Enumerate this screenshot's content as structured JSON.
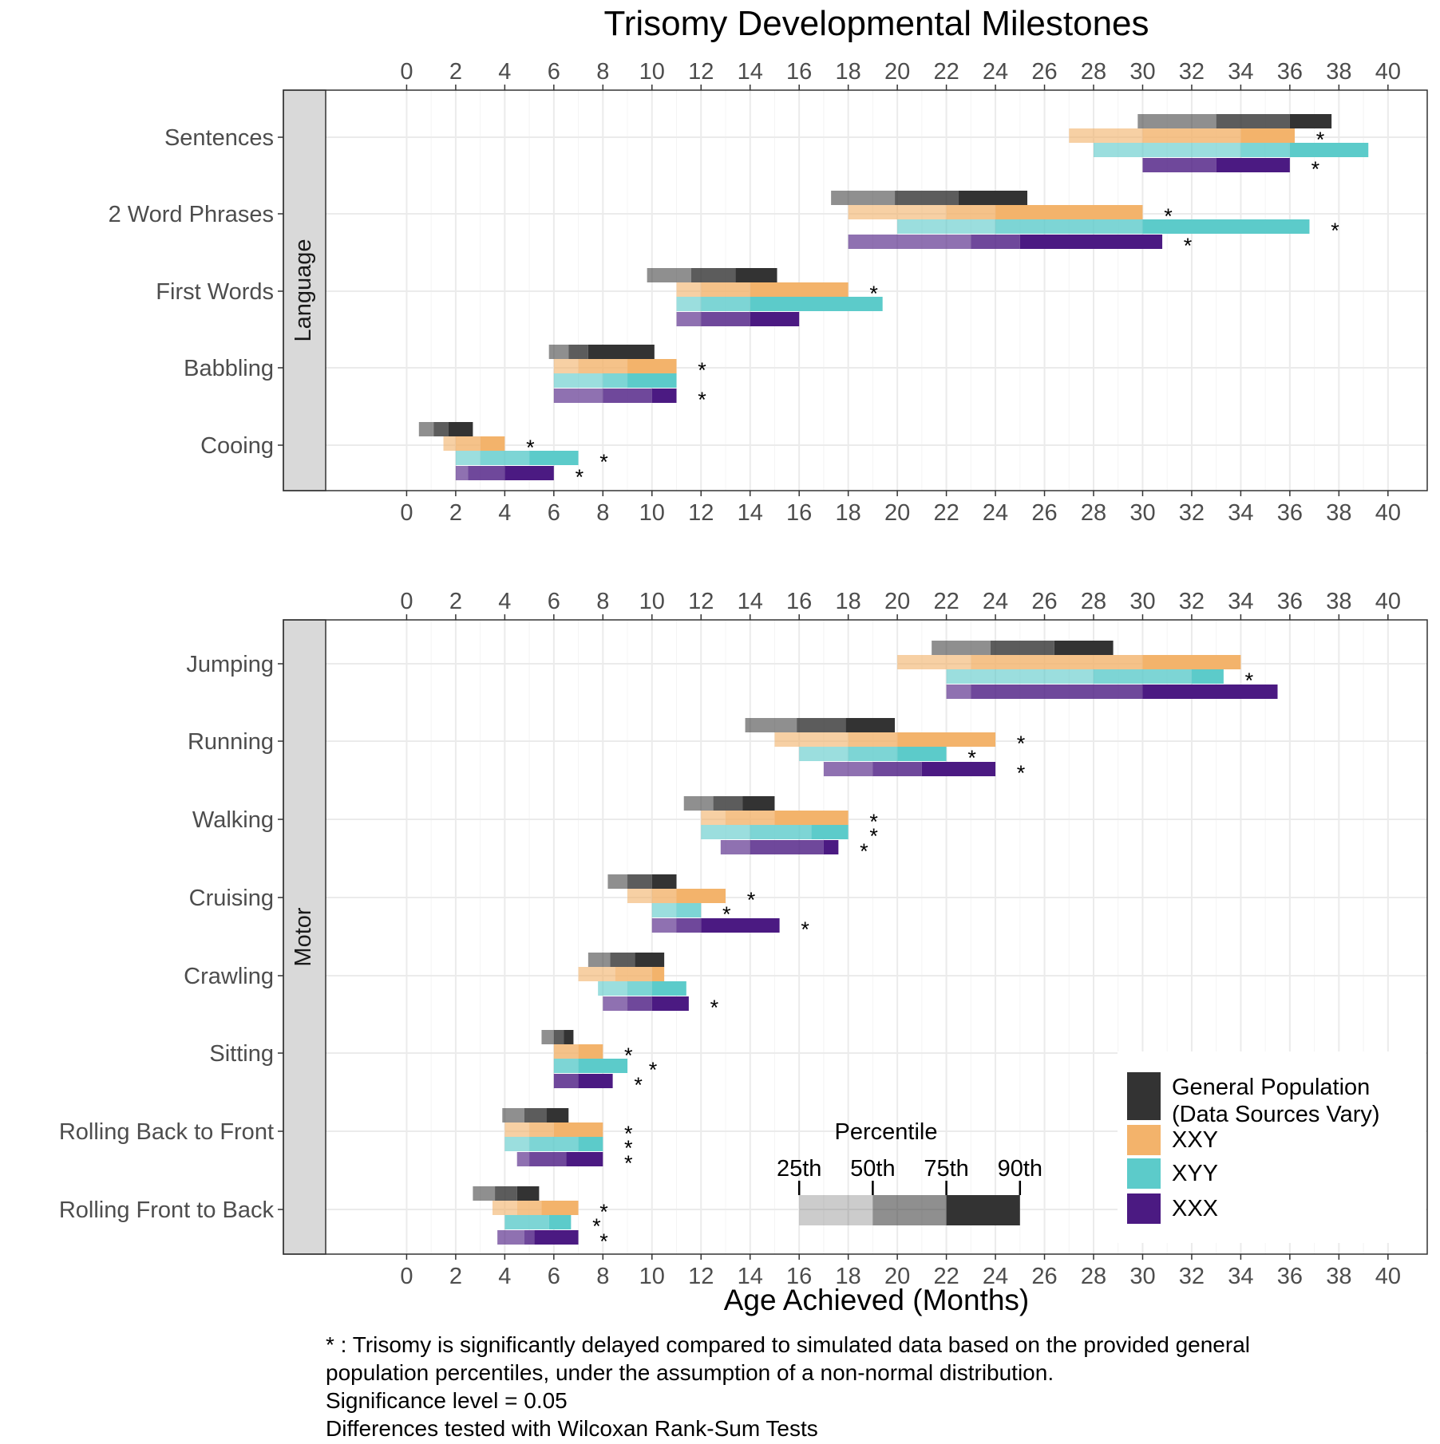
{
  "chart_data": {
    "type": "bar",
    "title": "Trisomy Developmental Milestones",
    "xlabel": "Age Achieved (Months)",
    "xlim": [
      -3.3,
      41.6
    ],
    "x_ticks": [
      0,
      2,
      4,
      6,
      8,
      10,
      12,
      14,
      16,
      18,
      20,
      22,
      24,
      26,
      28,
      30,
      32,
      34,
      36,
      38,
      40
    ],
    "groups": [
      "General Population",
      "XXY",
      "XYY",
      "XXX"
    ],
    "colors": {
      "General Population": "#333333",
      "XXY": "#f3b36b",
      "XYY": "#5ccbca",
      "XXX": "#4b1a82"
    },
    "value_format": "[25th, 50th, 75th, 90th] percentile age in months; asterisk = significant delay",
    "panels": [
      {
        "strip": "Language",
        "milestones": [
          {
            "label": "Sentences",
            "General Population": [
              29.8,
              33.0,
              36.0,
              37.7
            ],
            "XXY": [
              27.0,
              30.0,
              34.0,
              36.2
            ],
            "XXY_sig": true,
            "XYY": [
              28.0,
              34.0,
              36.0,
              39.2
            ],
            "XYY_sig": false,
            "XXX": [
              30.0,
              30.0,
              33.0,
              36.0
            ],
            "XXX_sig": true
          },
          {
            "label": "2 Word Phrases",
            "General Population": [
              17.3,
              19.9,
              22.5,
              25.3
            ],
            "XXY": [
              18.0,
              22.0,
              24.0,
              30.0
            ],
            "XXY_sig": true,
            "XYY": [
              20.0,
              24.0,
              30.0,
              36.8
            ],
            "XYY_sig": true,
            "XXX": [
              18.0,
              23.0,
              25.0,
              30.8
            ],
            "XXX_sig": true
          },
          {
            "label": "First Words",
            "General Population": [
              9.8,
              11.6,
              13.4,
              15.1
            ],
            "XXY": [
              11.0,
              12.0,
              14.0,
              18.0
            ],
            "XXY_sig": true,
            "XYY": [
              11.0,
              12.0,
              14.0,
              19.4
            ],
            "XYY_sig": false,
            "XXX": [
              11.0,
              12.0,
              14.0,
              16.0
            ],
            "XXX_sig": false
          },
          {
            "label": "Babbling",
            "General Population": [
              5.8,
              6.6,
              7.4,
              10.1
            ],
            "XXY": [
              6.0,
              7.0,
              9.0,
              11.0
            ],
            "XXY_sig": true,
            "XYY": [
              6.0,
              8.0,
              9.0,
              11.0
            ],
            "XYY_sig": false,
            "XXX": [
              6.0,
              8.0,
              10.0,
              11.0
            ],
            "XXX_sig": true
          },
          {
            "label": "Cooing",
            "General Population": [
              0.5,
              1.1,
              1.7,
              2.7
            ],
            "XXY": [
              1.5,
              2.0,
              3.0,
              4.0
            ],
            "XXY_sig": true,
            "XYY": [
              2.0,
              3.0,
              5.0,
              7.0
            ],
            "XYY_sig": true,
            "XXX": [
              2.0,
              2.5,
              4.0,
              6.0
            ],
            "XXX_sig": true
          }
        ]
      },
      {
        "strip": "Motor",
        "milestones": [
          {
            "label": "Jumping",
            "General Population": [
              21.4,
              23.8,
              26.4,
              28.8
            ],
            "XXY": [
              20.0,
              23.0,
              30.0,
              34.0
            ],
            "XXY_sig": false,
            "XYY": [
              22.0,
              28.0,
              32.0,
              33.3
            ],
            "XYY_sig": true,
            "XXX": [
              22.0,
              23.0,
              30.0,
              35.5
            ],
            "XXX_sig": false
          },
          {
            "label": "Running",
            "General Population": [
              13.8,
              15.9,
              17.9,
              19.9
            ],
            "XXY": [
              15.0,
              18.0,
              20.0,
              24.0
            ],
            "XXY_sig": true,
            "XYY": [
              16.0,
              18.0,
              20.0,
              22.0
            ],
            "XYY_sig": true,
            "XXX": [
              17.0,
              19.0,
              21.0,
              24.0
            ],
            "XXX_sig": true
          },
          {
            "label": "Walking",
            "General Population": [
              11.3,
              12.5,
              13.7,
              15.0
            ],
            "XXY": [
              12.0,
              13.0,
              15.0,
              18.0
            ],
            "XXY_sig": true,
            "XYY": [
              12.0,
              14.0,
              16.5,
              18.0
            ],
            "XYY_sig": true,
            "XXX": [
              12.8,
              14.0,
              17.0,
              17.6
            ],
            "XXX_sig": true
          },
          {
            "label": "Cruising",
            "General Population": [
              8.2,
              9.0,
              10.0,
              11.0
            ],
            "XXY": [
              9.0,
              10.0,
              11.0,
              13.0
            ],
            "XXY_sig": true,
            "XYY": [
              10.0,
              11.0,
              12.0,
              12.0
            ],
            "XYY_sig": true,
            "XXX": [
              10.0,
              11.0,
              12.0,
              15.2
            ],
            "XXX_sig": true
          },
          {
            "label": "Crawling",
            "General Population": [
              7.4,
              8.3,
              9.3,
              10.5
            ],
            "XXY": [
              7.0,
              8.5,
              10.0,
              10.5
            ],
            "XXY_sig": false,
            "XYY": [
              7.8,
              9.0,
              10.0,
              11.4
            ],
            "XYY_sig": false,
            "XXX": [
              8.0,
              9.0,
              10.0,
              11.5
            ],
            "XXX_sig": true
          },
          {
            "label": "Sitting",
            "General Population": [
              5.5,
              6.0,
              6.4,
              6.8
            ],
            "XXY": [
              6.0,
              6.0,
              7.0,
              8.0
            ],
            "XXY_sig": true,
            "XYY": [
              6.0,
              6.0,
              7.0,
              9.0
            ],
            "XYY_sig": true,
            "XXX": [
              6.0,
              6.0,
              7.0,
              8.4
            ],
            "XXX_sig": true
          },
          {
            "label": "Rolling Back to Front",
            "General Population": [
              3.9,
              4.8,
              5.7,
              6.6
            ],
            "XXY": [
              4.0,
              5.0,
              6.0,
              8.0
            ],
            "XXY_sig": true,
            "XYY": [
              4.0,
              5.0,
              7.0,
              8.0
            ],
            "XYY_sig": true,
            "XXX": [
              4.5,
              5.0,
              6.5,
              8.0
            ],
            "XXX_sig": true
          },
          {
            "label": "Rolling Front to Back",
            "General Population": [
              2.7,
              3.6,
              4.5,
              5.4
            ],
            "XXY": [
              3.5,
              4.5,
              5.5,
              7.0
            ],
            "XXY_sig": true,
            "XYY": [
              4.0,
              4.0,
              5.8,
              6.7
            ],
            "XYY_sig": true,
            "XXX": [
              3.7,
              4.8,
              5.2,
              7.0
            ],
            "XXX_sig": true
          }
        ]
      }
    ],
    "percentile_key": {
      "title": "Percentile",
      "labels": [
        "25th",
        "50th",
        "75th",
        "90th"
      ],
      "example": [
        16,
        19,
        22,
        25
      ]
    },
    "legend": {
      "entries": [
        {
          "group": "General Population",
          "lines": [
            "General Population",
            "(Data Sources Vary)"
          ]
        },
        {
          "group": "XXY",
          "lines": [
            "XXY"
          ]
        },
        {
          "group": "XYY",
          "lines": [
            "XYY"
          ]
        },
        {
          "group": "XXX",
          "lines": [
            "XXX"
          ]
        }
      ],
      "position": "bottom-right"
    },
    "footnote": [
      "* : Trisomy is significantly delayed compared to simulated data based on the provided general",
      "population percentiles, under the assumption of a non-normal distribution.",
      "Significance level = 0.05",
      "Differences tested with Wilcoxan Rank-Sum Tests"
    ],
    "significance_marker": "*",
    "grid": true
  }
}
